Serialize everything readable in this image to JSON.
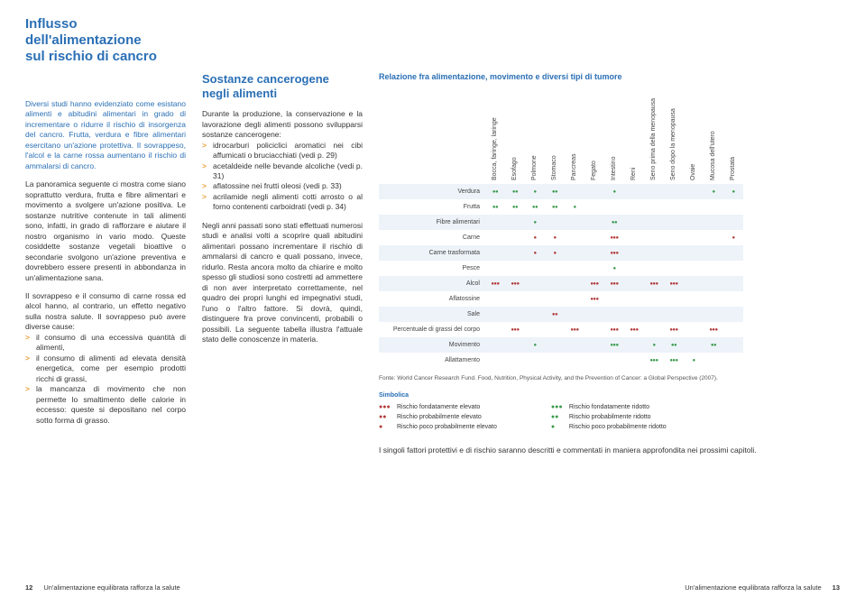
{
  "title_l1": "Influsso dell'alimentazione",
  "title_l2": "sul rischio di cancro",
  "col1": {
    "intro": "Diversi studi hanno evidenziato come esistano alimenti e abitudini alimentari in grado di incrementare o ridurre il rischio di insorgenza del cancro. Frutta, verdura e fibre alimentari esercitano un'azione protettiva. Il sovrappeso, l'alcol e la carne rossa aumentano il rischio di ammalarsi di cancro.",
    "p1": "La panoramica seguente ci mostra come siano soprattutto verdura, frutta e fibre alimentari e movimento a svolgere un'azione positiva. Le sostanze nutritive contenute in tali alimenti sono, infatti, in grado di rafforzare e aiutare il nostro organismo in vario modo. Queste cosiddette sostanze vegetali bioattive o secondarie svolgono un'azione preventiva e dovrebbero essere presenti in abbondanza in un'alimentazione sana.",
    "p2": "Il sovrappeso e il consumo di carne rossa ed alcol hanno, al contrario, un effetto negativo sulla nostra salute. Il sovrappeso può avere diverse cause:",
    "bullets": [
      "il consumo di una eccessiva quantità di alimenti,",
      "il consumo di alimenti ad elevata densità energetica, come per esempio prodotti ricchi di grassi,",
      "la mancanza di movimento che non permette lo smaltimento delle calorie in eccesso: queste si depositano nel corpo sotto forma di grasso."
    ]
  },
  "col2": {
    "subhead_l1": "Sostanze cancerogene",
    "subhead_l2": "negli alimenti",
    "p1": "Durante la produzione, la conservazione e la lavorazione degli alimenti possono svilupparsi sostanze cancerogene:",
    "bullets": [
      "idrocarburi policiclici aromatici nei cibi affumicati o bruciacchiati (vedi p. 29)",
      "acetaldeide nelle bevande alcoliche (vedi p. 31)",
      "aflatossine nei frutti oleosi (vedi p. 33)",
      "acrilamide negli alimenti cotti arrosto o al forno contenenti carboidrati (vedi p. 34)"
    ],
    "p2": "Negli anni passati sono stati effettuati numerosi studi e analisi volti a scoprire quali abitudini alimentari possano incrementare il rischio di ammalarsi di cancro e quali possano, invece, ridurlo. Resta ancora molto da chiarire e molto spesso gli studiosi sono costretti ad ammettere di non aver interpretato correttamente, nel quadro dei propri lunghi ed impegnativi studi, l'uno o l'altro fattore. Si dovrà, quindi, distinguere fra prove convincenti, probabili o possibili. La seguente tabella illustra l'attuale stato delle conoscenze in materia."
  },
  "chart": {
    "title": "Relazione fra alimentazione, movimento e diversi tipi di tumore",
    "columns": [
      "Bocca, faringe, laringe",
      "Esofago",
      "Polmone",
      "Stomaco",
      "Pancreas",
      "Fegato",
      "Intestino",
      "Reni",
      "Seno prima della menopausa",
      "Seno dopo la menopausa",
      "Ovaie",
      "Mucosa dell'utero",
      "Prostata"
    ],
    "rows": [
      {
        "label": "Verdura",
        "band": true,
        "cells": [
          "g2",
          "g2",
          "g1",
          "g2",
          "",
          "",
          "g1",
          "",
          "",
          "",
          "",
          "g1",
          "g1"
        ]
      },
      {
        "label": "Frutta",
        "band": false,
        "cells": [
          "g2",
          "g2",
          "g2",
          "g2",
          "g1",
          "",
          "",
          "",
          "",
          "",
          "",
          "",
          ""
        ]
      },
      {
        "label": "Fibre alimentari",
        "band": true,
        "cells": [
          "",
          "",
          "g1",
          "",
          "",
          "",
          "g2",
          "",
          "",
          "",
          "",
          "",
          ""
        ]
      },
      {
        "label": "Carne",
        "band": false,
        "cells": [
          "",
          "",
          "r1",
          "r1",
          "",
          "",
          "r3",
          "",
          "",
          "",
          "",
          "",
          "r1"
        ]
      },
      {
        "label": "Carne trasformata",
        "band": true,
        "cells": [
          "",
          "",
          "r1",
          "r1",
          "",
          "",
          "r3",
          "",
          "",
          "",
          "",
          "",
          ""
        ]
      },
      {
        "label": "Pesce",
        "band": false,
        "cells": [
          "",
          "",
          "",
          "",
          "",
          "",
          "g1",
          "",
          "",
          "",
          "",
          "",
          ""
        ]
      },
      {
        "label": "Alcol",
        "band": true,
        "cells": [
          "r3",
          "r3",
          "",
          "",
          "",
          "r3",
          "r3",
          "",
          "r3",
          "r3",
          "",
          "",
          ""
        ]
      },
      {
        "label": "Aflatossine",
        "band": false,
        "cells": [
          "",
          "",
          "",
          "",
          "",
          "r3",
          "",
          "",
          "",
          "",
          "",
          "",
          ""
        ]
      },
      {
        "label": "Sale",
        "band": true,
        "cells": [
          "",
          "",
          "",
          "r2",
          "",
          "",
          "",
          "",
          "",
          "",
          "",
          "",
          ""
        ]
      },
      {
        "label": "Percentuale di grassi del corpo",
        "band": false,
        "cells": [
          "",
          "r3",
          "",
          "",
          "r3",
          "",
          "r3",
          "r3",
          "",
          "r3",
          "",
          "r3",
          ""
        ]
      },
      {
        "label": "Movimento",
        "band": true,
        "cells": [
          "",
          "",
          "g1",
          "",
          "",
          "",
          "g3",
          "",
          "g1",
          "g2",
          "",
          "g2",
          ""
        ]
      },
      {
        "label": "Allattamento",
        "band": false,
        "cells": [
          "",
          "",
          "",
          "",
          "",
          "",
          "",
          "",
          "g3",
          "g3",
          "g1",
          "",
          ""
        ]
      }
    ],
    "source": "Fonte: World Cancer Research Fund. Food, Nutrition, Physical Activity, and the Prevention of Cancer: a Global Perspective (2007).",
    "legend_title": "Simbolica",
    "legend_red": [
      {
        "sym": "●●●",
        "text": "Rischio fondatamente elevato"
      },
      {
        "sym": "●●",
        "text": "Rischio probabilmente elevato"
      },
      {
        "sym": "●",
        "text": "Rischio poco probabilmente elevato"
      }
    ],
    "legend_green": [
      {
        "sym": "●●●",
        "text": "Rischio fondatamente ridotto"
      },
      {
        "sym": "●●",
        "text": "Rischio probabilmente ridotto"
      },
      {
        "sym": "●",
        "text": "Rischio poco probabilmente ridotto"
      }
    ],
    "conclusion": "I singoli fattori protettivi e di rischio saranno descritti e commentati in maniera approfondita nei prossimi capitoli."
  },
  "footer": {
    "left_num": "12",
    "left_text": "Un'alimentazione equilibrata rafforza la salute",
    "right_text": "Un'alimentazione equilibrata rafforza la salute",
    "right_num": "13"
  },
  "colors": {
    "blue": "#2a6fb5",
    "orange": "#e8a03c",
    "red": "#b23a3a",
    "green": "#3a9a4a",
    "band": "#edf3f9"
  }
}
